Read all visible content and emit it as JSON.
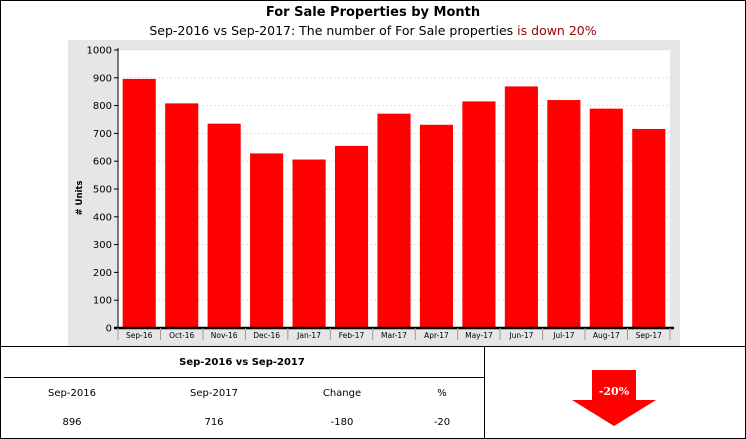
{
  "header": {
    "title": "For Sale Properties by Month",
    "subtitle_prefix": "Sep-2016 vs Sep-2017: The number of For Sale properties ",
    "subtitle_highlight": "is down 20%",
    "subtitle_highlight_color": "#990000"
  },
  "chart_data": {
    "type": "bar",
    "categories": [
      "Sep-16",
      "Oct-16",
      "Nov-16",
      "Dec-16",
      "Jan-17",
      "Feb-17",
      "Mar-17",
      "Apr-17",
      "May-17",
      "Jun-17",
      "Jul-17",
      "Aug-17",
      "Sep-17"
    ],
    "values": [
      896,
      808,
      735,
      628,
      606,
      655,
      771,
      731,
      815,
      869,
      820,
      789,
      716
    ],
    "ylabel": "# Units",
    "ylim": [
      0,
      1000
    ],
    "yticks": [
      0,
      100,
      200,
      300,
      400,
      500,
      600,
      700,
      800,
      900,
      1000
    ],
    "grid": true,
    "bar_color": "#ff0000",
    "plot_background": "#e6e6e6"
  },
  "summary": {
    "heading": "Sep-2016 vs Sep-2017",
    "columns": [
      "Sep-2016",
      "Sep-2017",
      "Change",
      "%"
    ],
    "values": [
      "896",
      "716",
      "-180",
      "-20"
    ],
    "indicator": {
      "label": "-20%",
      "direction": "down",
      "color": "#ff0000"
    }
  }
}
